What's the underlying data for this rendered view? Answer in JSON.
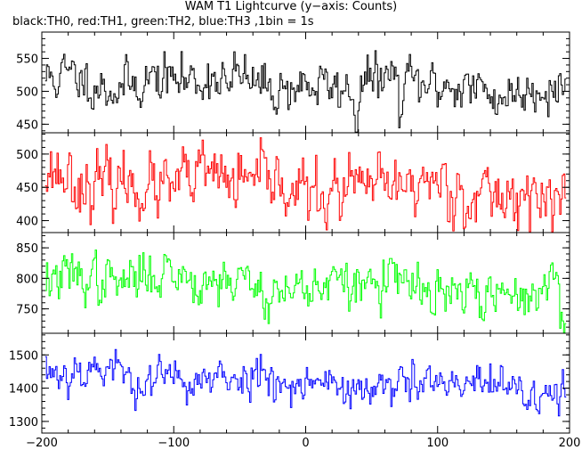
{
  "title": "WAM T1 Lightcurve (y−axis: Counts)",
  "subtitle": "black:TH0, red:TH1, green:TH2, blue:TH3 ,1bin = 1s",
  "chart_data": {
    "type": "line",
    "xlim": [
      -200,
      200
    ],
    "x_ticks": [
      -200,
      -100,
      0,
      100,
      200
    ],
    "x_tick_labels": [
      "−200",
      "−100",
      "0",
      "100",
      "200"
    ],
    "bin_seconds": 1,
    "panels": [
      {
        "name": "TH0",
        "color": "#000000",
        "ylim": [
          437,
          590
        ],
        "y_ticks": [
          450,
          500,
          550
        ],
        "seed": 11,
        "mean": [
          520,
          503
        ],
        "sigma": 22,
        "smooth": 0.45,
        "features": [
          {
            "x": 38,
            "width": 2,
            "depth": -60
          },
          {
            "x": 72,
            "width": 2,
            "depth": -55
          },
          {
            "x": -58,
            "width": 2,
            "depth": -45
          }
        ]
      },
      {
        "name": "TH1",
        "color": "#ff0000",
        "ylim": [
          382,
          532
        ],
        "y_ticks": [
          400,
          450,
          500
        ],
        "seed": 23,
        "mean": [
          462,
          440
        ],
        "sigma": 26,
        "smooth": 0.4,
        "features": []
      },
      {
        "name": "TH2",
        "color": "#00ff00",
        "ylim": [
          710,
          875
        ],
        "y_ticks": [
          750,
          800,
          850
        ],
        "seed": 37,
        "mean": [
          808,
          770
        ],
        "sigma": 24,
        "smooth": 0.45,
        "features": [
          {
            "x": 196,
            "width": 3,
            "depth": -40
          }
        ]
      },
      {
        "name": "TH3",
        "color": "#0000ff",
        "ylim": [
          1265,
          1565
        ],
        "y_ticks": [
          1300,
          1400,
          1500
        ],
        "seed": 53,
        "mean": [
          1450,
          1385
        ],
        "sigma": 38,
        "smooth": 0.45,
        "features": []
      }
    ]
  }
}
